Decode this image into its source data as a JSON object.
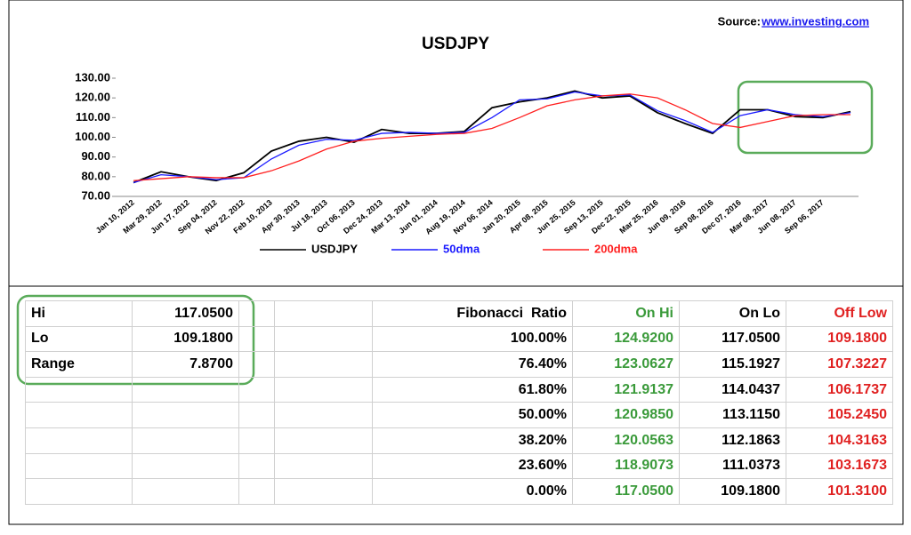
{
  "source": {
    "label": "Source:",
    "link": "www.investing.com"
  },
  "chart_data": {
    "type": "line",
    "title": "USDJPY",
    "categories": [
      "Jan 10, 2012",
      "Mar 29, 2012",
      "Jun 17, 2012",
      "Sep 04, 2012",
      "Nov 22, 2012",
      "Feb 10, 2013",
      "Apr 30, 2013",
      "Jul 18, 2013",
      "Oct 06, 2013",
      "Dec 24, 2013",
      "Mar 13, 2014",
      "Jun 01, 2014",
      "Aug 19, 2014",
      "Nov 06, 2014",
      "Jan 20, 2015",
      "Apr 08, 2015",
      "Jun 25, 2015",
      "Sep 13, 2015",
      "Dec 22, 2015",
      "Mar 25, 2016",
      "Jun 09, 2016",
      "Sep 08, 2016",
      "Dec 07, 2016",
      "Mar 08, 2017",
      "Jun 08, 2017",
      "Sep 06, 2017",
      null
    ],
    "series": [
      {
        "name": "USDJPY",
        "color": "#000000",
        "values": [
          77,
          82.5,
          80,
          78,
          82,
          93,
          98,
          100,
          97.5,
          104,
          102,
          102,
          103,
          115,
          118,
          120,
          123.5,
          120,
          121,
          112.5,
          107,
          102,
          114,
          114,
          110.5,
          110,
          113
        ]
      },
      {
        "name": "50dma",
        "color": "#1a1aff",
        "values": [
          77,
          81,
          80,
          78.5,
          79.5,
          89,
          96,
          99,
          98.5,
          102,
          102.5,
          102,
          102.5,
          110,
          119,
          119.5,
          123,
          121,
          121.5,
          113.5,
          108.5,
          102.5,
          111,
          114,
          111.5,
          110.5,
          112.5
        ]
      },
      {
        "name": "200dma",
        "color": "#ff2020",
        "values": [
          78,
          79,
          80,
          79.5,
          79.5,
          83,
          88,
          94,
          98,
          99.5,
          100.5,
          101.5,
          102,
          104.5,
          110,
          116,
          119,
          121,
          122,
          120,
          114,
          107,
          105,
          108,
          111,
          111.5,
          111.5
        ]
      }
    ],
    "ylim": [
      70,
      130
    ],
    "yticks": [
      {
        "value": 70,
        "label": "70.00"
      },
      {
        "value": 80,
        "label": "80.00"
      },
      {
        "value": 90,
        "label": "90.00"
      },
      {
        "value": 100,
        "label": "100.00"
      },
      {
        "value": 110,
        "label": "110.00"
      },
      {
        "value": 120,
        "label": "120.00"
      },
      {
        "value": 130,
        "label": "130.00"
      }
    ],
    "grid": false,
    "legend": "bottom"
  },
  "table": {
    "rows": [
      [
        "Hi",
        "117.0500",
        null,
        null,
        "Fibonacci  Ratio",
        "On Hi",
        "On Lo",
        "Off Low"
      ],
      [
        "Lo",
        "109.1800",
        null,
        null,
        "100.00%",
        "124.9200",
        "117.0500",
        "109.1800"
      ],
      [
        "Range",
        "7.8700",
        null,
        null,
        "76.40%",
        "123.0627",
        "115.1927",
        "107.3227"
      ],
      [
        null,
        null,
        null,
        null,
        "61.80%",
        "121.9137",
        "114.0437",
        "106.1737"
      ],
      [
        null,
        null,
        null,
        null,
        "50.00%",
        "120.9850",
        "113.1150",
        "105.2450"
      ],
      [
        null,
        null,
        null,
        null,
        "38.20%",
        "120.0563",
        "112.1863",
        "104.3163"
      ],
      [
        null,
        null,
        null,
        null,
        "23.60%",
        "118.9073",
        "111.0373",
        "103.1673"
      ],
      [
        null,
        null,
        null,
        null,
        "0.00%",
        "117.0500",
        "109.1800",
        "101.3100"
      ]
    ]
  }
}
